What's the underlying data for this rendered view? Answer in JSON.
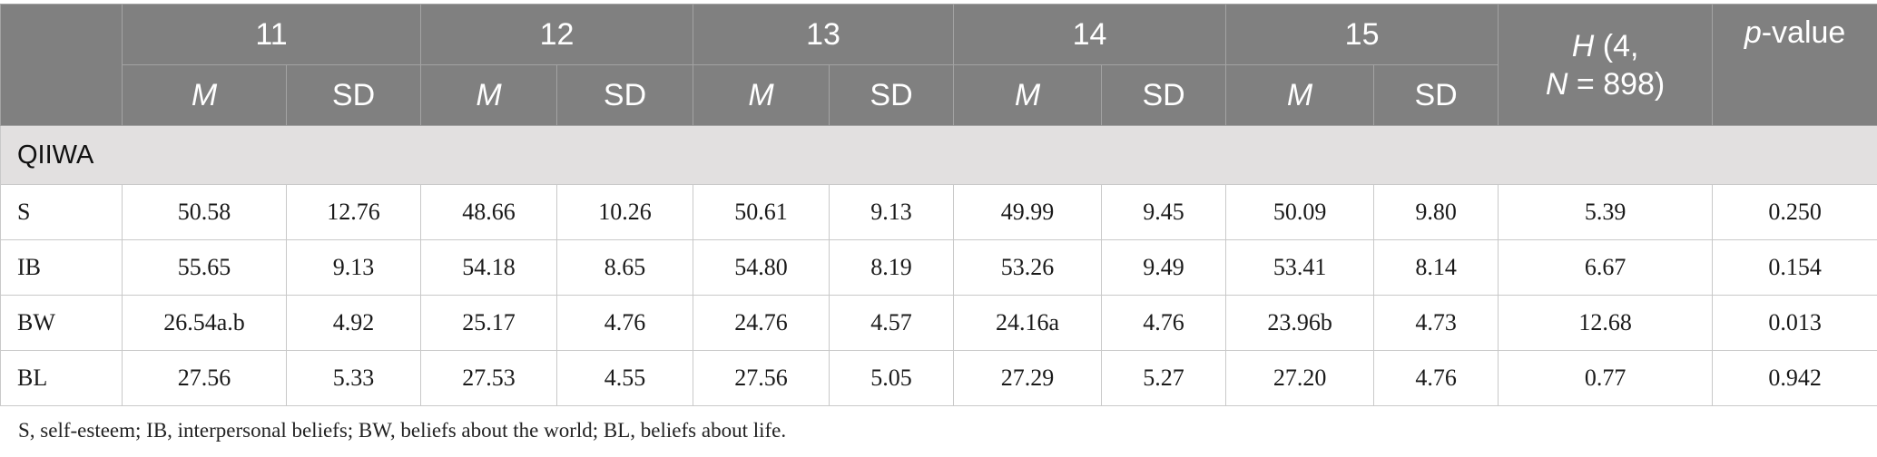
{
  "header": {
    "groups": [
      "11",
      "12",
      "13",
      "14",
      "15"
    ],
    "mean_label": "M",
    "sd_label": "SD",
    "h_stat": {
      "symbol": "H",
      "rest_line1": " (4,",
      "n_symbol": "N",
      "rest_line2": " = 898)"
    },
    "p_value": {
      "symbol": "p",
      "rest": "-value"
    }
  },
  "section_title": "QIIWA",
  "rows": [
    {
      "label": "S",
      "values": [
        "50.58",
        "12.76",
        "48.66",
        "10.26",
        "50.61",
        "9.13",
        "49.99",
        "9.45",
        "50.09",
        "9.80"
      ],
      "h": "5.39",
      "p": "0.250"
    },
    {
      "label": "IB",
      "values": [
        "55.65",
        "9.13",
        "54.18",
        "8.65",
        "54.80",
        "8.19",
        "53.26",
        "9.49",
        "53.41",
        "8.14"
      ],
      "h": "6.67",
      "p": "0.154"
    },
    {
      "label": "BW",
      "values": [
        "26.54a.b",
        "4.92",
        "25.17",
        "4.76",
        "24.76",
        "4.57",
        "24.16a",
        "4.76",
        "23.96b",
        "4.73"
      ],
      "h": "12.68",
      "p": "0.013"
    },
    {
      "label": "BL",
      "values": [
        "27.56",
        "5.33",
        "27.53",
        "4.55",
        "27.56",
        "5.05",
        "27.29",
        "5.27",
        "27.20",
        "4.76"
      ],
      "h": "0.77",
      "p": "0.942"
    }
  ],
  "footnote": "S, self-esteem; IB, interpersonal beliefs; BW, beliefs about the world; BL, beliefs about life."
}
